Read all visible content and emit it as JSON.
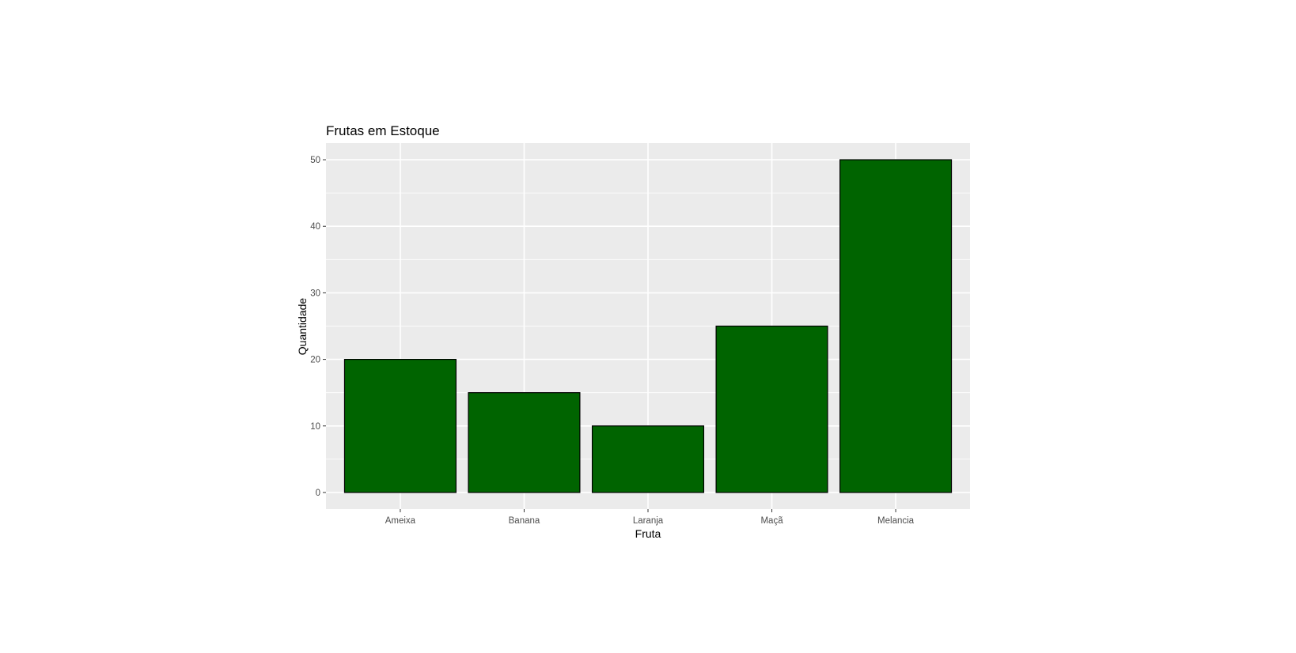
{
  "chart_data": {
    "type": "bar",
    "title": "Frutas em Estoque",
    "xlabel": "Fruta",
    "ylabel": "Quantidade",
    "categories": [
      "Ameixa",
      "Banana",
      "Laranja",
      "Maçã",
      "Melancia"
    ],
    "values": [
      20,
      15,
      10,
      25,
      50
    ],
    "ylim": [
      -2.5,
      52.5
    ],
    "yticks": [
      0,
      10,
      20,
      30,
      40,
      50
    ],
    "grid": true,
    "legend": "none",
    "colors": {
      "bar_fill": "#006400",
      "bar_stroke": "#000000",
      "panel_background": "#ebebeb",
      "grid_line": "#ffffff",
      "tick_text": "#4d4d4d"
    }
  }
}
